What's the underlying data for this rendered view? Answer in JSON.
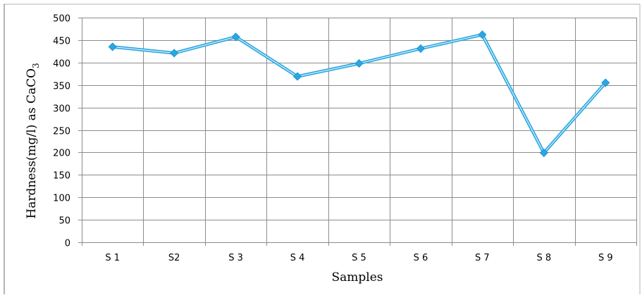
{
  "chart_data": {
    "type": "line",
    "title": "",
    "xlabel": "Samples",
    "ylabel_main": "Hardness(mg/l) as CaCO",
    "ylabel_subscript": "3",
    "categories": [
      "S 1",
      "S2",
      "S 3",
      "S 4",
      "S 5",
      "S 6",
      "S 7",
      "S 8",
      "S 9"
    ],
    "series": [
      {
        "values": [
          435,
          421,
          457,
          369,
          398,
          431,
          462,
          199,
          355
        ],
        "color": "#29a7e1",
        "marker": "diamond"
      }
    ],
    "ylim": [
      0,
      500
    ],
    "yticks": [
      0,
      50,
      100,
      150,
      200,
      250,
      300,
      350,
      400,
      450,
      500
    ],
    "grid": true,
    "legend": "none"
  }
}
